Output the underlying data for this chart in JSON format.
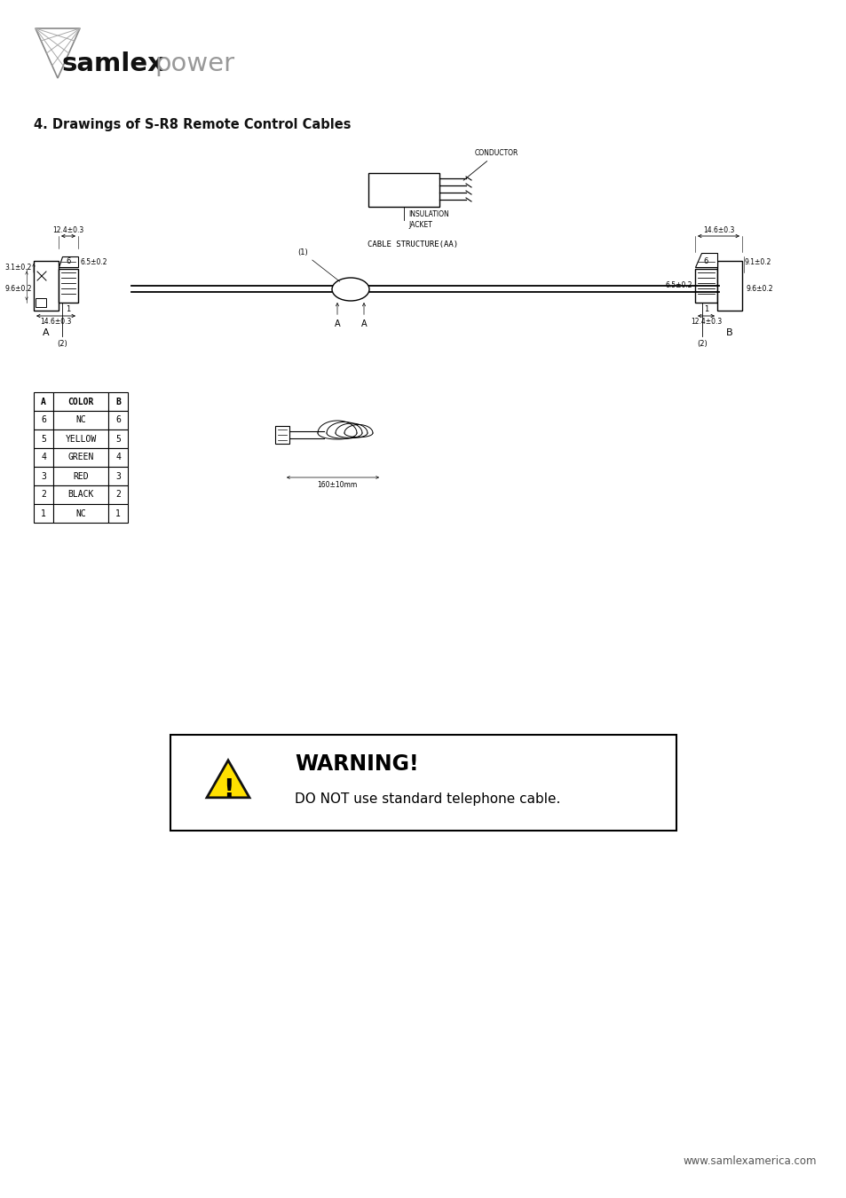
{
  "page_bg": "#ffffff",
  "logo_text_bold": "samlex",
  "logo_text_light": "power",
  "section_title": "4. Drawings of S-R8 Remote Control Cables",
  "table_headers": [
    "A",
    "COLOR",
    "B"
  ],
  "table_rows": [
    [
      "6",
      "NC",
      "6"
    ],
    [
      "5",
      "YELLOW",
      "5"
    ],
    [
      "4",
      "GREEN",
      "4"
    ],
    [
      "3",
      "RED",
      "3"
    ],
    [
      "2",
      "BLACK",
      "2"
    ],
    [
      "1",
      "NC",
      "1"
    ]
  ],
  "warning_title": "WARNING!",
  "warning_body": "DO NOT use standard telephone cable.",
  "footer_url": "www.samlexamerica.com",
  "diagram_labels": {
    "conductor": "CONDUCTOR",
    "insulation_line1": "INSULATION",
    "insulation_line2": "JACKET",
    "cable_structure": "CABLE STRUCTURE(AA)",
    "label_1_annot": "(1)",
    "label_2_left": "(2)",
    "label_2_right": "(2)",
    "dim_12_4": "12.4±0.3",
    "dim_6_5_left": "6.5±0.2",
    "dim_3_1": "3.1±0.2",
    "dim_14_6_left": "14.6±0.3",
    "dim_9_6_left": "9.6±0.2",
    "dim_14_6_right": "14.6±0.3",
    "dim_6_5_right": "6.5±0.2",
    "dim_9_1": "9.1±0.2",
    "dim_12_4_right": "12.4±0.3",
    "dim_9_6_right": "9.6±0.2",
    "pin_6_left": "6",
    "pin_1_left": "1",
    "pin_6_right": "6",
    "pin_1_right": "1",
    "dim_160": "160±10mm"
  }
}
